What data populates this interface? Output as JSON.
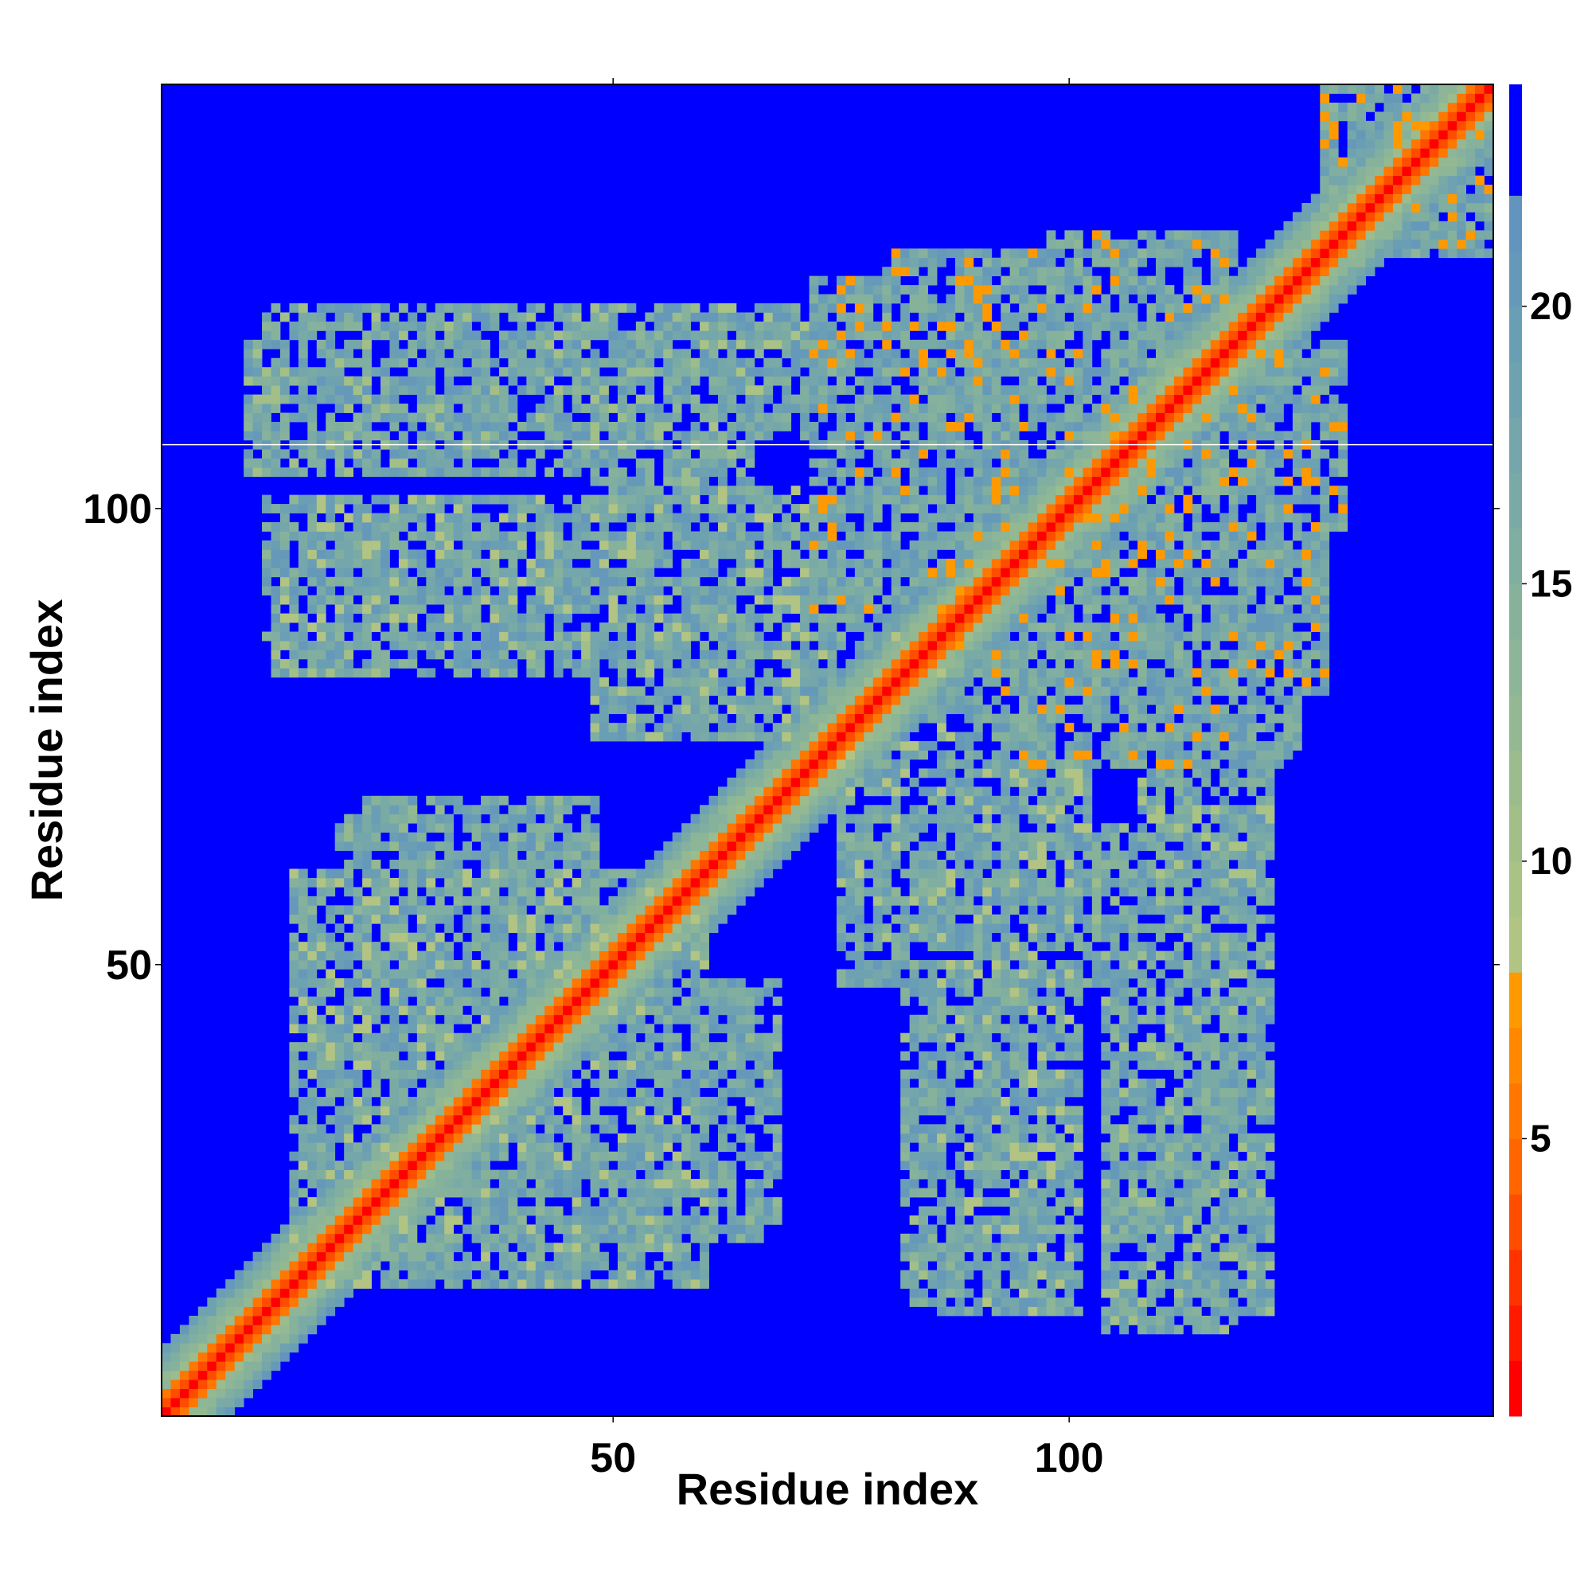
{
  "chart_data": {
    "type": "heatmap",
    "title": "",
    "xlabel": "Residue index",
    "ylabel": "Residue index",
    "n_residues": 146,
    "xlim": [
      1,
      146
    ],
    "ylim": [
      1,
      146
    ],
    "x_ticks": [
      50,
      100
    ],
    "y_ticks": [
      50,
      100
    ],
    "colorbar": {
      "ticks": [
        5,
        10,
        15,
        20
      ],
      "range": [
        0,
        24
      ],
      "levels": [
        {
          "from": 0,
          "to": 1,
          "color": "#ff0000"
        },
        {
          "from": 1,
          "to": 2,
          "color": "#ff1a00"
        },
        {
          "from": 2,
          "to": 3,
          "color": "#ff3300"
        },
        {
          "from": 3,
          "to": 4,
          "color": "#ff4d00"
        },
        {
          "from": 4,
          "to": 5,
          "color": "#ff6600"
        },
        {
          "from": 5,
          "to": 6,
          "color": "#ff7700"
        },
        {
          "from": 6,
          "to": 7,
          "color": "#ff8800"
        },
        {
          "from": 7,
          "to": 8,
          "color": "#ff9900"
        },
        {
          "from": 8,
          "to": 9,
          "color": "#b2c483"
        },
        {
          "from": 9,
          "to": 10,
          "color": "#a9c285"
        },
        {
          "from": 10,
          "to": 11,
          "color": "#a2bf88"
        },
        {
          "from": 11,
          "to": 12,
          "color": "#9bbc8d"
        },
        {
          "from": 12,
          "to": 13,
          "color": "#94b892"
        },
        {
          "from": 13,
          "to": 14,
          "color": "#8db597"
        },
        {
          "from": 14,
          "to": 15,
          "color": "#86b29c"
        },
        {
          "from": 15,
          "to": 16,
          "color": "#80aea1"
        },
        {
          "from": 16,
          "to": 17,
          "color": "#7aaaa6"
        },
        {
          "from": 17,
          "to": 18,
          "color": "#74a6ab"
        },
        {
          "from": 18,
          "to": 19,
          "color": "#6fa2b0"
        },
        {
          "from": 19,
          "to": 20,
          "color": "#6a9eb5"
        },
        {
          "from": 20,
          "to": 21,
          "color": "#6699b9"
        },
        {
          "from": 21,
          "to": 22,
          "color": "#6294bd"
        },
        {
          "from": 22,
          "to": 24,
          "color": "#0000ff"
        }
      ]
    },
    "background_color": "#0000ff",
    "description_of_pattern": {
      "diagonal_band": {
        "residues": [
          1,
          146
        ],
        "distance_on_diagonal": 0
      },
      "contact_blocks": [
        {
          "x": [
            12,
            50
          ],
          "y": [
            108,
            122
          ],
          "min_distance": 8
        },
        {
          "x": [
            50,
            65
          ],
          "y": [
            100,
            122
          ],
          "min_distance": 9
        },
        {
          "x": [
            72,
            98
          ],
          "y": [
            100,
            125
          ],
          "min_distance": 5
        },
        {
          "x": [
            98,
            118
          ],
          "y": [
            108,
            130
          ],
          "min_distance": 5
        },
        {
          "x": [
            12,
            60
          ],
          "y": [
            86,
            101
          ],
          "min_distance": 6
        },
        {
          "x": [
            60,
            74
          ],
          "y": [
            75,
            102
          ],
          "min_distance": 6
        },
        {
          "x": [
            72,
            96
          ],
          "y": [
            88,
            100
          ],
          "min_distance": 5
        },
        {
          "x": [
            100,
            128
          ],
          "y": [
            80,
            102
          ],
          "min_distance": 5
        },
        {
          "x": [
            85,
            110
          ],
          "y": [
            72,
            90
          ],
          "min_distance": 6
        },
        {
          "x": [
            108,
            122
          ],
          "y": [
            60,
            90
          ],
          "min_distance": 7
        },
        {
          "x": [
            75,
            96
          ],
          "y": [
            48,
            68
          ],
          "min_distance": 7
        },
        {
          "x": [
            82,
            93
          ],
          "y": [
            13,
            48
          ],
          "min_distance": 8
        },
        {
          "x": [
            100,
            112
          ],
          "y": [
            48,
            65
          ],
          "min_distance": 9
        },
        {
          "x": [
            104,
            118
          ],
          "y": [
            10,
            47
          ],
          "min_distance": 8
        },
        {
          "x": [
            15,
            55
          ],
          "y": [
            15,
            60
          ],
          "min_distance": 6
        },
        {
          "x": [
            48,
            66
          ],
          "y": [
            20,
            44
          ],
          "min_distance": 10
        },
        {
          "x": [
            22,
            48
          ],
          "y": [
            55,
            68
          ],
          "min_distance": 10
        },
        {
          "x": [
            135,
            146
          ],
          "y": [
            128,
            146
          ],
          "min_distance": 5
        }
      ]
    }
  }
}
